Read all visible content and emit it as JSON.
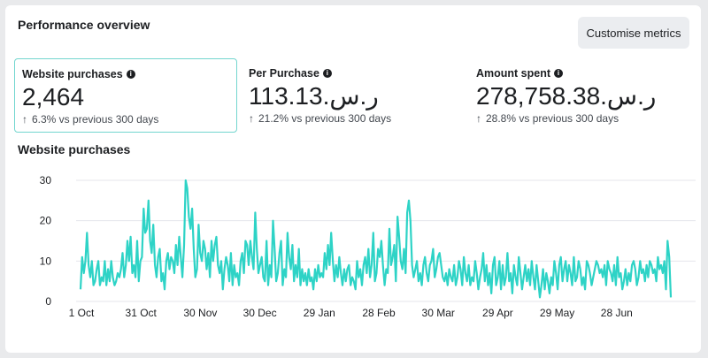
{
  "header": {
    "title": "Performance overview",
    "customise_label": "Customise metrics"
  },
  "metrics": [
    {
      "label": "Website purchases",
      "value": "2,464",
      "change_arrow": "↑",
      "change": "6.3% vs previous 300 days"
    },
    {
      "label": "Per Purchase",
      "value": "113.13.ر.س",
      "change_arrow": "↑",
      "change": "21.2% vs previous 300 days"
    },
    {
      "label": "Amount spent",
      "value": "278,758.38.ر.س",
      "change_arrow": "↑",
      "change": "28.8% vs previous 300 days"
    }
  ],
  "info_glyph": "i",
  "colors": {
    "line": "#2ed3c6",
    "selected_border": "#73d6cf",
    "grid": "#e4e6eb"
  },
  "chart_data": {
    "type": "line",
    "title": "Website purchases",
    "y_ticks": [
      0,
      10,
      20,
      30
    ],
    "ylim": [
      0,
      30
    ],
    "x_tick_labels": [
      "1 Oct",
      "31 Oct",
      "30 Nov",
      "30 Dec",
      "29 Jan",
      "28 Feb",
      "30 Mar",
      "29 Apr",
      "29 May",
      "28 Jun"
    ],
    "grid": true,
    "series": [
      {
        "values": [
          3,
          11,
          7,
          10,
          17,
          9,
          6,
          10,
          4,
          5,
          8,
          10,
          4,
          6,
          5,
          10,
          4,
          8,
          5,
          10,
          6,
          4,
          5,
          7,
          6,
          8,
          12,
          6,
          9,
          15,
          10,
          16,
          7,
          9,
          6,
          15,
          5,
          10,
          11,
          23,
          17,
          18,
          25,
          15,
          12,
          19,
          9,
          6,
          11,
          13,
          5,
          7,
          3,
          10,
          12,
          8,
          11,
          10,
          7,
          14,
          9,
          16,
          11,
          6,
          14,
          30,
          28,
          21,
          18,
          23,
          13,
          6,
          8,
          19,
          12,
          10,
          15,
          13,
          8,
          12,
          6,
          15,
          10,
          14,
          16,
          9,
          7,
          10,
          3,
          8,
          11,
          9,
          5,
          12,
          4,
          9,
          6,
          7,
          4,
          10,
          12,
          7,
          15,
          14,
          9,
          15,
          11,
          8,
          22,
          13,
          7,
          9,
          11,
          6,
          5,
          15,
          4,
          9,
          6,
          20,
          13,
          5,
          7,
          12,
          15,
          4,
          8,
          6,
          17,
          11,
          8,
          14,
          5,
          9,
          6,
          13,
          4,
          8,
          5,
          7,
          4,
          8,
          5,
          6,
          3,
          8,
          5,
          9,
          6,
          7,
          6,
          12,
          8,
          14,
          9,
          17,
          10,
          5,
          9,
          6,
          11,
          7,
          4,
          8,
          5,
          8,
          9,
          4,
          6,
          5,
          3,
          10,
          6,
          8,
          4,
          9,
          11,
          7,
          13,
          6,
          9,
          17,
          5,
          7,
          13,
          11,
          15,
          9,
          4,
          8,
          7,
          18,
          9,
          11,
          14,
          5,
          21,
          16,
          10,
          8,
          13,
          7,
          22,
          25,
          20,
          9,
          6,
          8,
          10,
          5,
          7,
          4,
          9,
          11,
          7,
          5,
          9,
          10,
          13,
          6,
          8,
          11,
          12,
          9,
          6,
          5,
          7,
          4,
          8,
          6,
          5,
          9,
          4,
          6,
          10,
          8,
          4,
          11,
          7,
          5,
          9,
          4,
          6,
          5,
          10,
          7,
          3,
          6,
          8,
          12,
          5,
          9,
          4,
          7,
          2,
          9,
          11,
          4,
          6,
          10,
          3,
          9,
          4,
          6,
          12,
          5,
          7,
          2,
          9,
          6,
          4,
          11,
          7,
          3,
          6,
          9,
          5,
          8,
          4,
          10,
          6,
          3,
          9,
          5,
          1,
          4,
          8,
          3,
          7,
          5,
          2,
          6,
          4,
          10,
          7,
          3,
          9,
          11,
          5,
          8,
          10,
          5,
          9,
          7,
          4,
          11,
          5,
          6,
          10,
          8,
          4,
          6,
          3,
          10,
          9,
          7,
          4,
          6,
          8,
          10,
          9,
          7,
          8,
          6,
          9,
          4,
          10,
          8,
          7,
          5,
          9,
          4,
          11,
          6,
          7,
          3,
          5,
          8,
          4,
          7,
          5,
          9,
          10,
          8,
          4,
          6,
          10,
          7,
          8,
          5,
          9,
          6,
          10,
          9,
          7,
          8,
          5,
          11,
          8,
          9,
          7,
          10,
          3,
          15,
          11,
          1
        ]
      }
    ]
  }
}
